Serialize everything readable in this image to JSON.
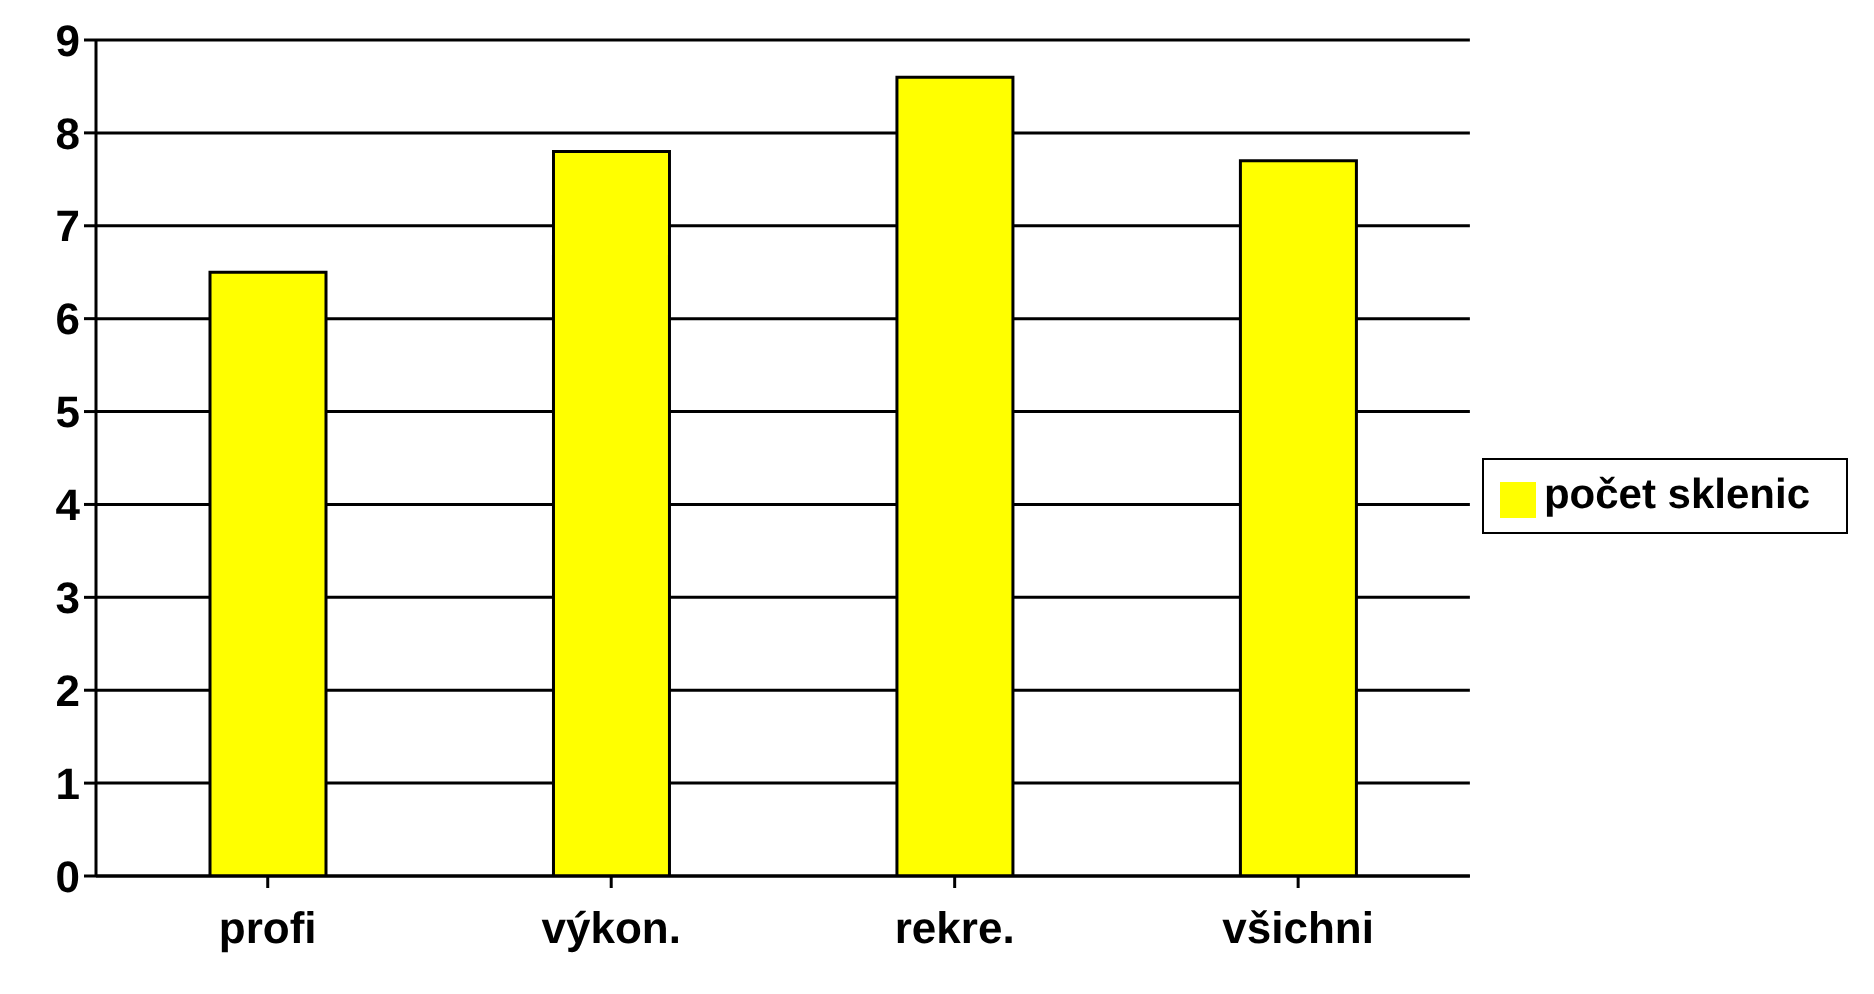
{
  "chart_data": {
    "type": "bar",
    "categories": [
      "profi",
      "výkon.",
      "rekre.",
      "všichni"
    ],
    "series": [
      {
        "name": "počet sklenic",
        "color": "#ffff00",
        "values": [
          6.5,
          7.8,
          8.6,
          7.7
        ]
      }
    ],
    "ylim": [
      0,
      9
    ],
    "yticks": [
      0,
      1,
      2,
      3,
      4,
      5,
      6,
      7,
      8,
      9
    ],
    "grid": "y",
    "legend": "right"
  }
}
